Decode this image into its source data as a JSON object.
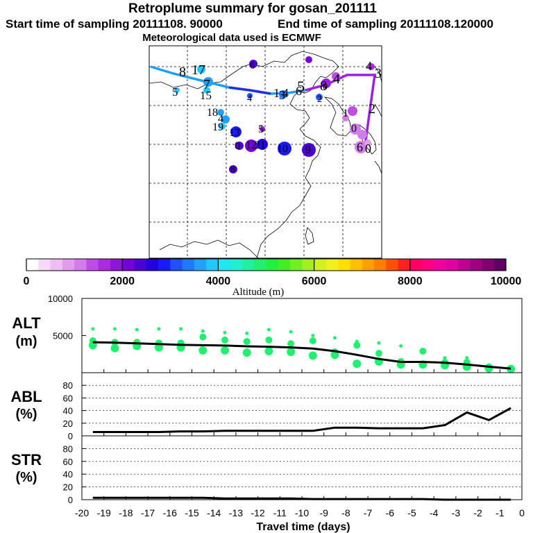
{
  "header": {
    "title": "Retroplume summary for gosan_201111",
    "start": "Start time of sampling 20111108. 90000",
    "end": "End time of sampling 20111108.120000",
    "met": "Meteorological data used is ECMWF"
  },
  "colorbar": {
    "ticks": [
      "0",
      "2000",
      "4000",
      "6000",
      "8000",
      "10000"
    ],
    "label": "Altitude (m)",
    "colors": [
      "#ffffff",
      "#f6d8f8",
      "#eebef2",
      "#e09ded",
      "#d17de9",
      "#be4de6",
      "#ac2be0",
      "#8f17dc",
      "#7500d8",
      "#4d00d4",
      "#2200e2",
      "#1a1aff",
      "#2050ff",
      "#2078ff",
      "#20a0ff",
      "#20c8ff",
      "#20e8f0",
      "#20f0d0",
      "#20f0a0",
      "#20f070",
      "#20f040",
      "#40f020",
      "#70f020",
      "#a0f020",
      "#d0f020",
      "#f0f020",
      "#ffe000",
      "#ffc000",
      "#ffa000",
      "#ff8000",
      "#ff5000",
      "#ff2020",
      "#ff0060",
      "#ff0080",
      "#f000a0",
      "#e000a0",
      "#c00090",
      "#a00080",
      "#800070",
      "#600060"
    ]
  },
  "map_labels": [
    {
      "t": "8",
      "c": "#000"
    },
    {
      "t": "17",
      "c": "#000"
    },
    {
      "t": "7",
      "c": "#000"
    },
    {
      "t": "5",
      "c": "#000"
    },
    {
      "t": "15",
      "c": "#000"
    },
    {
      "t": "6",
      "c": "#000"
    },
    {
      "t": "4",
      "c": "#000"
    },
    {
      "t": "1",
      "c": "#000"
    },
    {
      "t": "4",
      "c": "#000"
    },
    {
      "t": "6",
      "c": "#000"
    },
    {
      "t": "3",
      "c": "#000"
    },
    {
      "t": "5",
      "c": "#000"
    },
    {
      "t": "8",
      "c": "#000"
    },
    {
      "t": "0",
      "c": "#000"
    },
    {
      "t": "4",
      "c": "#000"
    },
    {
      "t": "2",
      "c": "#000"
    },
    {
      "t": "4",
      "c": "#000"
    },
    {
      "t": "3",
      "c": "#000"
    },
    {
      "t": "2",
      "c": "#000"
    },
    {
      "t": "1",
      "c": "#000"
    },
    {
      "t": "18",
      "c": "#000"
    },
    {
      "t": "4",
      "c": "#000"
    },
    {
      "t": "19",
      "c": "#000"
    },
    {
      "t": "13",
      "c": "#000"
    },
    {
      "t": "5",
      "c": "#000"
    },
    {
      "t": "0",
      "c": "#000"
    },
    {
      "t": "12",
      "c": "#000"
    },
    {
      "t": "21",
      "c": "#000"
    },
    {
      "t": "10",
      "c": "#000"
    },
    {
      "t": "9",
      "c": "#000"
    },
    {
      "t": "8",
      "c": "#000"
    },
    {
      "t": "0",
      "c": "#000"
    },
    {
      "t": "6",
      "c": "#000"
    },
    {
      "t": "0",
      "c": "#000"
    }
  ],
  "panels": {
    "alt": {
      "label1": "ALT",
      "label2": "(m)",
      "yticks": [
        "10000",
        "5000"
      ]
    },
    "abl": {
      "label1": "ABL",
      "label2": "(%)",
      "yticks": [
        "80",
        "60",
        "40",
        "20",
        "0"
      ]
    },
    "str": {
      "label1": "STR",
      "label2": "(%)",
      "yticks": [
        "80",
        "60",
        "40",
        "20",
        "0"
      ]
    },
    "xlabel": "Travel time (days)",
    "xticks": [
      "-20",
      "-19",
      "-18",
      "-17",
      "-16",
      "-15",
      "-14",
      "-13",
      "-12",
      "-11",
      "-10",
      "-9",
      "-8",
      "-7",
      "-6",
      "-5",
      "-4",
      "-3",
      "-2",
      "-1",
      "0"
    ]
  },
  "chart_data": {
    "type": "line",
    "x": [
      -19.5,
      -18.5,
      -17.5,
      -16.5,
      -15.5,
      -14.5,
      -13.5,
      -12.5,
      -11.5,
      -10.5,
      -9.5,
      -8.5,
      -7.5,
      -6.5,
      -5.5,
      -4.5,
      -3.5,
      -2.5,
      -1.5,
      -0.5
    ],
    "series": [
      {
        "name": "ALT mean",
        "values": [
          4100,
          4050,
          3950,
          3850,
          3750,
          3700,
          3650,
          3550,
          3500,
          3400,
          3250,
          2900,
          2400,
          1850,
          1450,
          1450,
          1350,
          1100,
          800,
          550
        ]
      },
      {
        "name": "ABL",
        "values": [
          6,
          6,
          6,
          6,
          7,
          7,
          8,
          8,
          8,
          8,
          8,
          13,
          13,
          12,
          12,
          12,
          17,
          37,
          25,
          44
        ]
      },
      {
        "name": "STR",
        "values": [
          3,
          3,
          3,
          3,
          3,
          3,
          2,
          2,
          2,
          2,
          1,
          1,
          1,
          1,
          1,
          1,
          0,
          0,
          0,
          0
        ]
      }
    ],
    "alt_spread": [
      [
        5900,
        4300,
        3700
      ],
      [
        5900,
        4100,
        3300
      ],
      [
        5800,
        4100,
        3600
      ],
      [
        5900,
        4000,
        3400
      ],
      [
        5900,
        4000,
        3400
      ],
      [
        5600,
        4800,
        3000
      ],
      [
        5400,
        4400,
        3000
      ],
      [
        5300,
        4200,
        2700
      ],
      [
        5800,
        4400,
        2900
      ],
      [
        5500,
        3900,
        2800
      ],
      [
        5000,
        4300,
        2300
      ],
      [
        4700,
        2800,
        2400
      ],
      [
        4200,
        3700,
        1200
      ],
      [
        4000,
        2600,
        1500
      ],
      [
        3600,
        1500,
        1100
      ],
      [
        3100,
        2900,
        1100
      ],
      [
        2000,
        1400,
        1000
      ],
      [
        2000,
        1400,
        800
      ],
      [
        1000,
        800,
        600
      ],
      [
        800,
        600,
        500
      ]
    ],
    "ylim_alt": [
      0,
      10000
    ],
    "ylim_abl": [
      0,
      100
    ],
    "ylim_str": [
      0,
      100
    ],
    "xlim": [
      -20,
      0
    ]
  }
}
